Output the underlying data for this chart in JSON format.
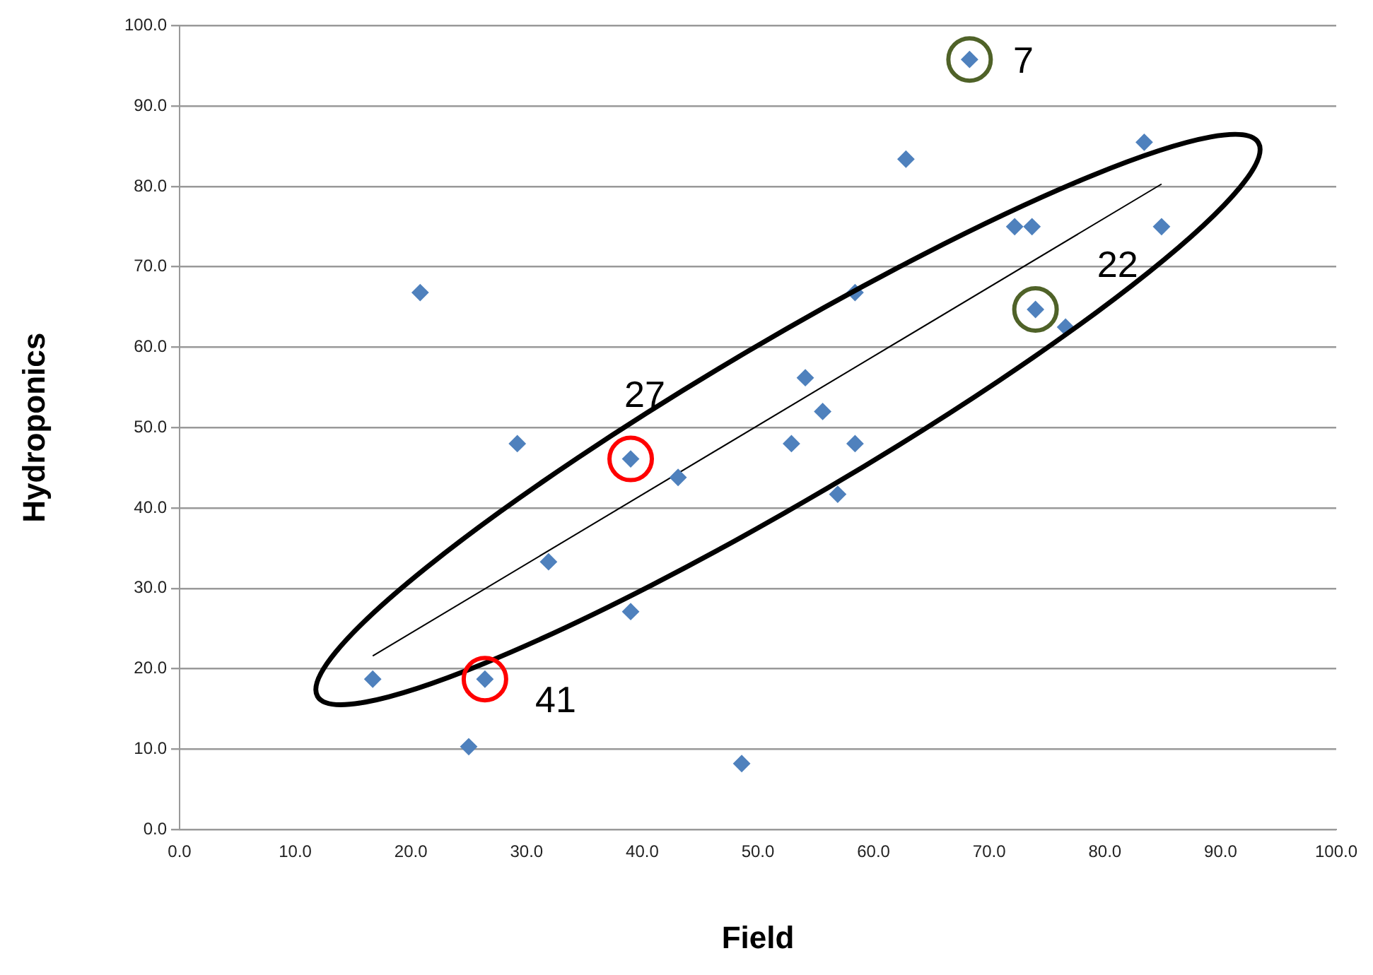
{
  "chart_data": {
    "type": "scatter",
    "xlabel": "Field",
    "ylabel": "Hydroponics",
    "series": [
      {
        "color": "#4f81bd",
        "marker": "diamond",
        "x": [
          68.3,
          20.8,
          62.8,
          83.4,
          72.2,
          73.7,
          84.9,
          58.4,
          74.0,
          76.6,
          54.1,
          55.6,
          29.2,
          52.9,
          58.4,
          56.9,
          39.0,
          43.1,
          31.9,
          39.0,
          16.7,
          26.4,
          25.0,
          48.6
        ],
        "values": [
          95.8,
          66.8,
          83.4,
          85.5,
          75.0,
          75.0,
          75.0,
          66.8,
          64.7,
          62.5,
          56.2,
          52.0,
          48.0,
          48.0,
          48.0,
          41.7,
          46.1,
          43.8,
          33.3,
          27.1,
          18.7,
          18.7,
          10.3,
          8.2
        ]
      },
      {
        "type": "line",
        "marker": "none",
        "color": "#000000",
        "x": [
          16.7,
          84.9
        ],
        "values": [
          21.6,
          80.3
        ]
      }
    ],
    "annotations": [
      {
        "text": "7",
        "x": 68.3,
        "y": 95.8
      },
      {
        "text": "22",
        "x": 74.0,
        "y": 64.7
      },
      {
        "text": "27",
        "x": 39.0,
        "y": 46.1
      },
      {
        "text": "41",
        "x": 26.4,
        "y": 18.7
      }
    ],
    "xlim": [
      0,
      100
    ],
    "ylim": [
      0,
      100
    ],
    "xticks": [
      {
        "value": 0,
        "label": "0.0"
      },
      {
        "value": 10,
        "label": "10.0"
      },
      {
        "value": 20,
        "label": "20.0"
      },
      {
        "value": 30,
        "label": "30.0"
      },
      {
        "value": 40,
        "label": "40.0"
      },
      {
        "value": 50,
        "label": "50.0"
      },
      {
        "value": 60,
        "label": "60.0"
      },
      {
        "value": 70,
        "label": "70.0"
      },
      {
        "value": 80,
        "label": "80.0"
      },
      {
        "value": 90,
        "label": "90.0"
      },
      {
        "value": 100,
        "label": "100.0"
      }
    ],
    "yticks": [
      {
        "value": 0,
        "label": "0.0"
      },
      {
        "value": 10,
        "label": "10.0"
      },
      {
        "value": 20,
        "label": "20.0"
      },
      {
        "value": 30,
        "label": "30.0"
      },
      {
        "value": 40,
        "label": "40.0"
      },
      {
        "value": 50,
        "label": "50.0"
      },
      {
        "value": 60,
        "label": "60.0"
      },
      {
        "value": 70,
        "label": "70.0"
      },
      {
        "value": 80,
        "label": "80.0"
      },
      {
        "value": 90,
        "label": "90.0"
      },
      {
        "value": 100,
        "label": "100.0"
      }
    ],
    "grid": "y",
    "line_style": "solid"
  }
}
